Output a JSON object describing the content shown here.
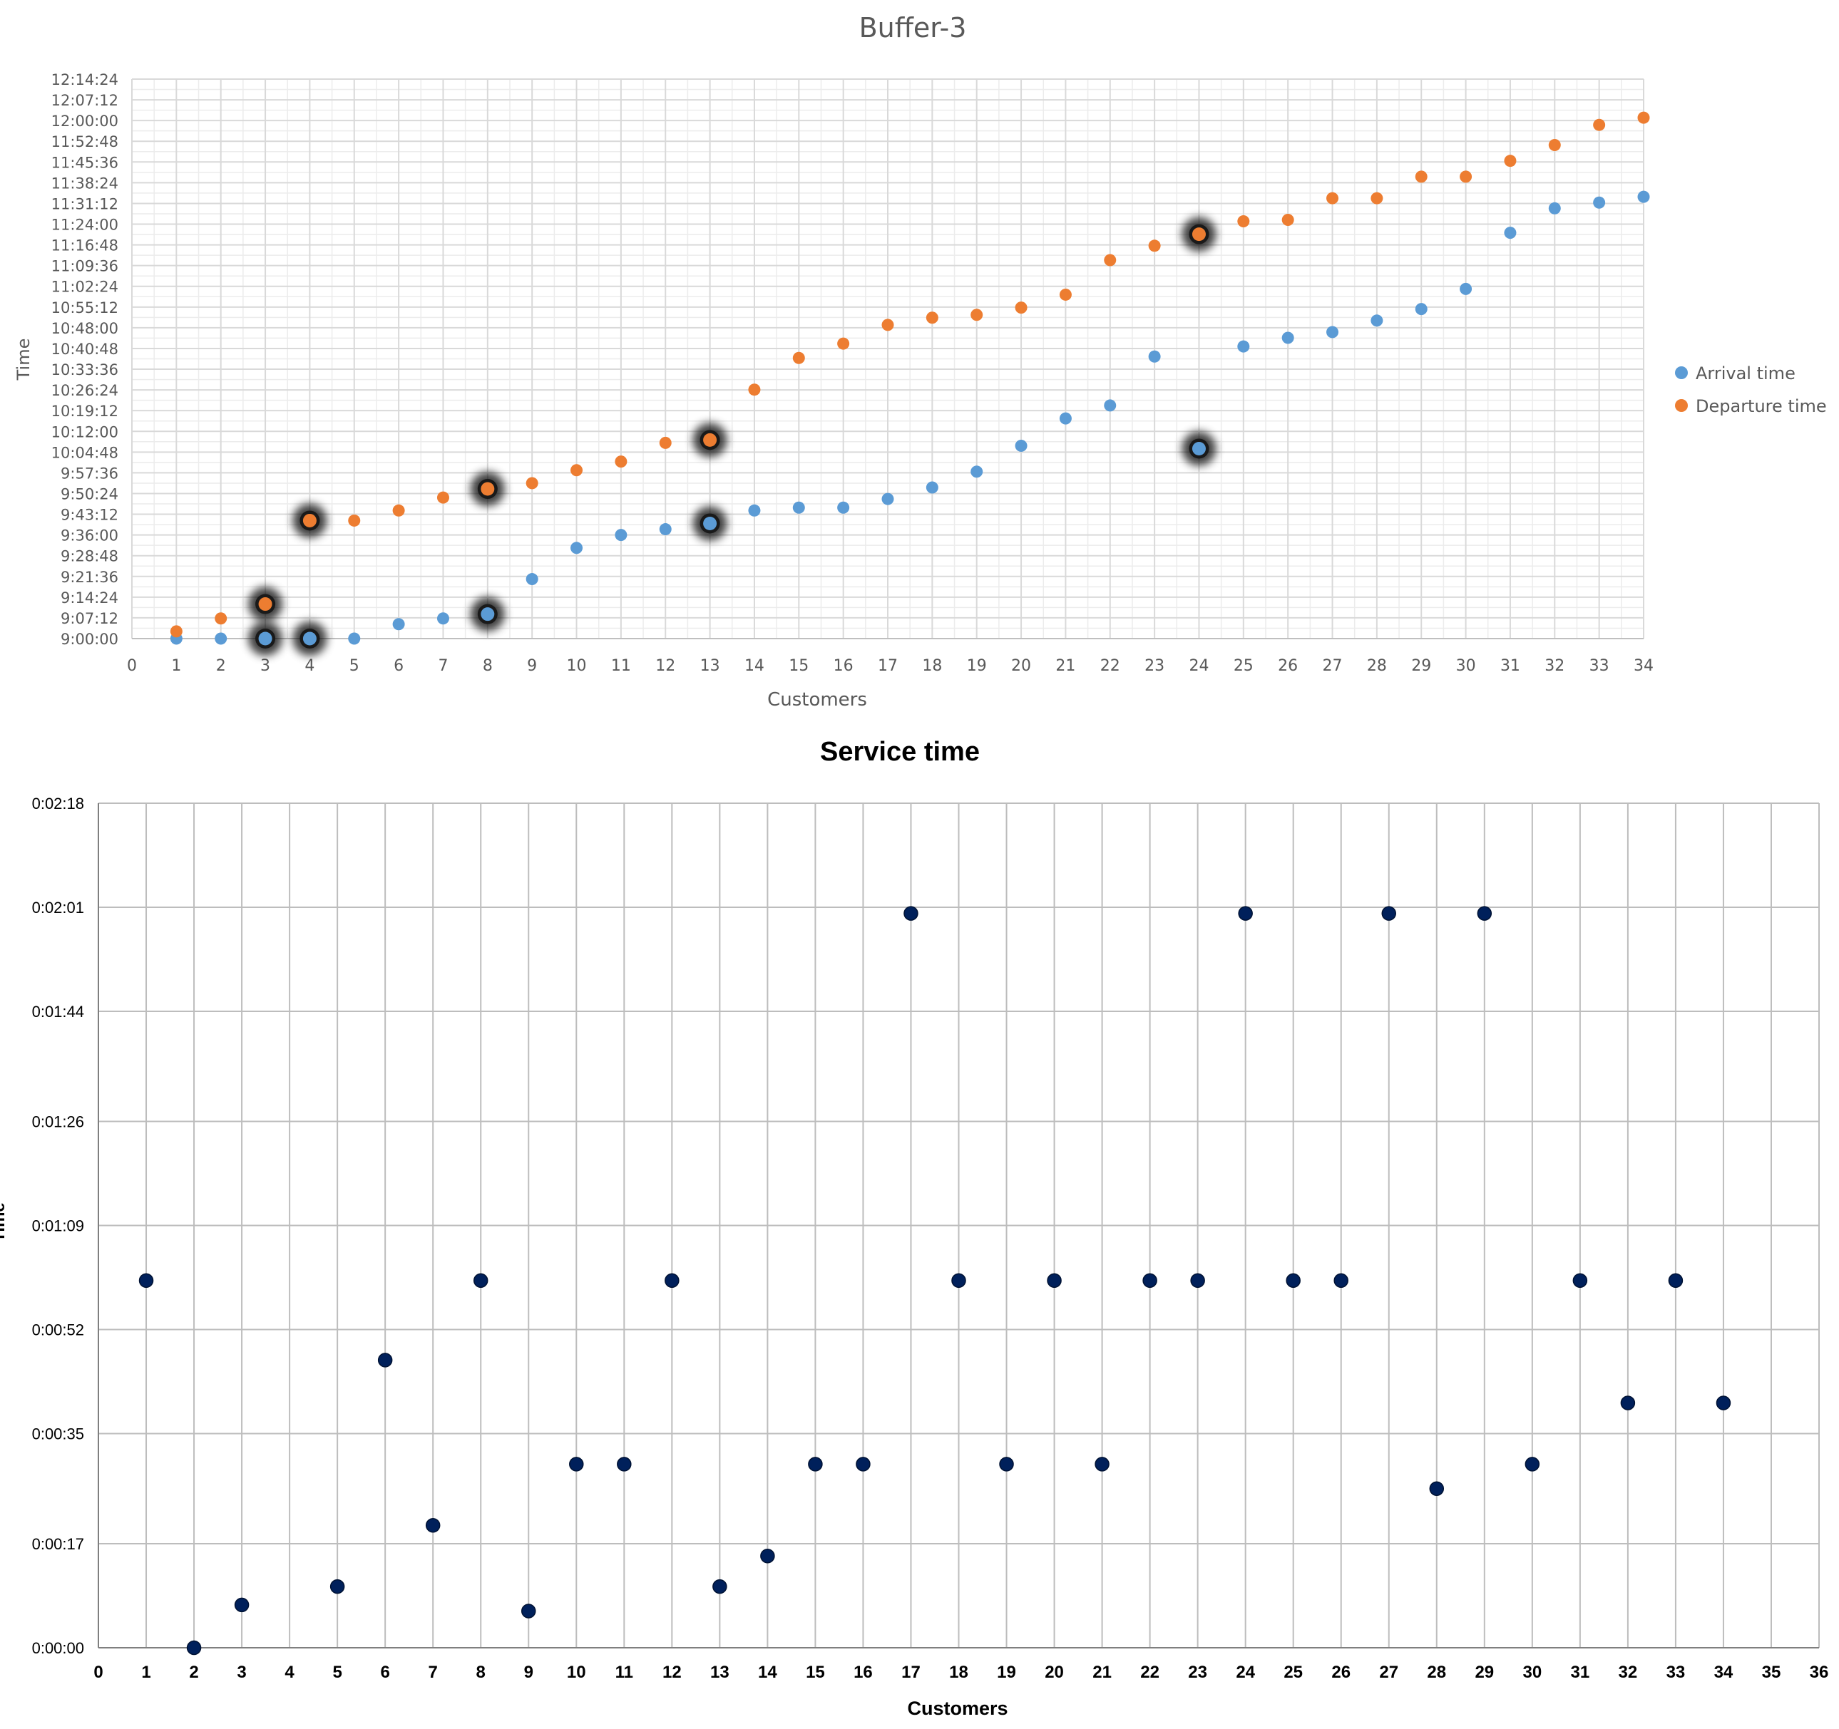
{
  "chart_data": [
    {
      "type": "scatter",
      "title": "Buffer-3",
      "xlabel": "Customers",
      "ylabel": "Time",
      "xlim": [
        0,
        34
      ],
      "ylim": [
        "9:00:00",
        "12:14:24"
      ],
      "x_ticks": [
        "0",
        "1",
        "2",
        "3",
        "4",
        "5",
        "6",
        "7",
        "8",
        "9",
        "10",
        "11",
        "12",
        "13",
        "14",
        "15",
        "16",
        "17",
        "18",
        "19",
        "20",
        "21",
        "22",
        "23",
        "24",
        "25",
        "26",
        "27",
        "28",
        "29",
        "30",
        "31",
        "32",
        "33",
        "34"
      ],
      "y_ticks": [
        "9:00:00",
        "9:07:12",
        "9:14:24",
        "9:21:36",
        "9:28:48",
        "9:36:00",
        "9:43:12",
        "9:50:24",
        "9:57:36",
        "10:04:48",
        "10:12:00",
        "10:19:12",
        "10:26:24",
        "10:33:36",
        "10:40:48",
        "10:48:00",
        "10:55:12",
        "11:02:24",
        "11:09:36",
        "11:16:48",
        "11:24:00",
        "11:31:12",
        "11:38:24",
        "11:45:36",
        "11:52:48",
        "12:00:00",
        "12:07:12",
        "12:14:24"
      ],
      "grid": true,
      "legend_position": "right",
      "colors": {
        "arrival": "#5b9bd5",
        "departure": "#ed7d31"
      },
      "x": [
        1,
        2,
        3,
        4,
        5,
        6,
        7,
        8,
        9,
        10,
        11,
        12,
        13,
        14,
        15,
        16,
        17,
        18,
        19,
        20,
        21,
        22,
        23,
        24,
        25,
        26,
        27,
        28,
        29,
        30,
        31,
        32,
        33,
        34
      ],
      "series": [
        {
          "name": "Arrival time",
          "values": [
            "9:00:00",
            "9:00:00",
            "9:00:00",
            "9:00:00",
            "9:00:00",
            "9:05:00",
            "9:07:00",
            "9:08:30",
            "9:20:40",
            "9:31:30",
            "9:36:00",
            "9:38:00",
            "9:40:00",
            "9:44:30",
            "9:45:30",
            "9:45:30",
            "9:48:30",
            "9:52:30",
            "9:58:00",
            "10:07:00",
            "10:16:30",
            "10:21:00",
            "10:38:00",
            "10:06:00",
            "10:41:30",
            "10:44:30",
            "10:46:30",
            "10:50:30",
            "10:54:30",
            "11:01:30",
            "11:21:00",
            "11:29:30",
            "11:31:30",
            "11:33:30"
          ],
          "highlighted": [
            3,
            4,
            8,
            13,
            24
          ]
        },
        {
          "name": "Departure time",
          "values": [
            "9:02:30",
            "9:07:00",
            "9:12:00",
            "9:41:00",
            "9:41:00",
            "9:44:30",
            "9:49:00",
            "9:52:00",
            "9:54:00",
            "9:58:30",
            "10:01:30",
            "10:08:00",
            "10:09:00",
            "10:26:30",
            "10:37:30",
            "10:42:30",
            "10:49:00",
            "10:51:30",
            "10:52:30",
            "10:55:00",
            "10:59:30",
            "11:11:30",
            "11:16:30",
            "11:20:30",
            "11:25:00",
            "11:25:30",
            "11:33:00",
            "11:33:00",
            "11:40:30",
            "11:40:30",
            "11:46:00",
            "11:51:30",
            "11:58:30",
            "12:01:00"
          ],
          "highlighted": [
            3,
            4,
            8,
            13,
            24
          ]
        }
      ]
    },
    {
      "type": "scatter",
      "title": "Service time",
      "xlabel": "Customers",
      "ylabel": "Time",
      "xlim": [
        0,
        36
      ],
      "ylim": [
        "0:00:00",
        "0:02:18"
      ],
      "x_ticks": [
        "0",
        "1",
        "2",
        "3",
        "4",
        "5",
        "6",
        "7",
        "8",
        "9",
        "10",
        "11",
        "12",
        "13",
        "14",
        "15",
        "16",
        "17",
        "18",
        "19",
        "20",
        "21",
        "22",
        "23",
        "24",
        "25",
        "26",
        "27",
        "28",
        "29",
        "30",
        "31",
        "32",
        "33",
        "34",
        "35",
        "36"
      ],
      "y_ticks": [
        "0:00:00",
        "0:00:17",
        "0:00:35",
        "0:00:52",
        "0:01:09",
        "0:01:26",
        "0:01:44",
        "0:02:01",
        "0:02:18"
      ],
      "grid": true,
      "colors": {
        "points": "#00205b"
      },
      "x": [
        1,
        2,
        3,
        5,
        6,
        7,
        8,
        9,
        10,
        11,
        12,
        13,
        14,
        15,
        16,
        17,
        18,
        19,
        20,
        21,
        22,
        23,
        24,
        25,
        26,
        27,
        28,
        29,
        30,
        31,
        32,
        33,
        34
      ],
      "values": [
        "0:01:00",
        "0:00:00",
        "0:00:07",
        "0:00:10",
        "0:00:47",
        "0:00:20",
        "0:01:00",
        "0:00:06",
        "0:00:30",
        "0:00:30",
        "0:01:00",
        "0:00:10",
        "0:00:15",
        "0:00:30",
        "0:00:30",
        "0:02:00",
        "0:01:00",
        "0:00:30",
        "0:01:00",
        "0:00:30",
        "0:01:00",
        "0:01:00",
        "0:02:00",
        "0:01:00",
        "0:01:00",
        "0:02:00",
        "0:00:26",
        "0:02:00",
        "0:00:30",
        "0:01:00",
        "0:00:40",
        "0:01:00",
        "0:00:40"
      ]
    }
  ]
}
